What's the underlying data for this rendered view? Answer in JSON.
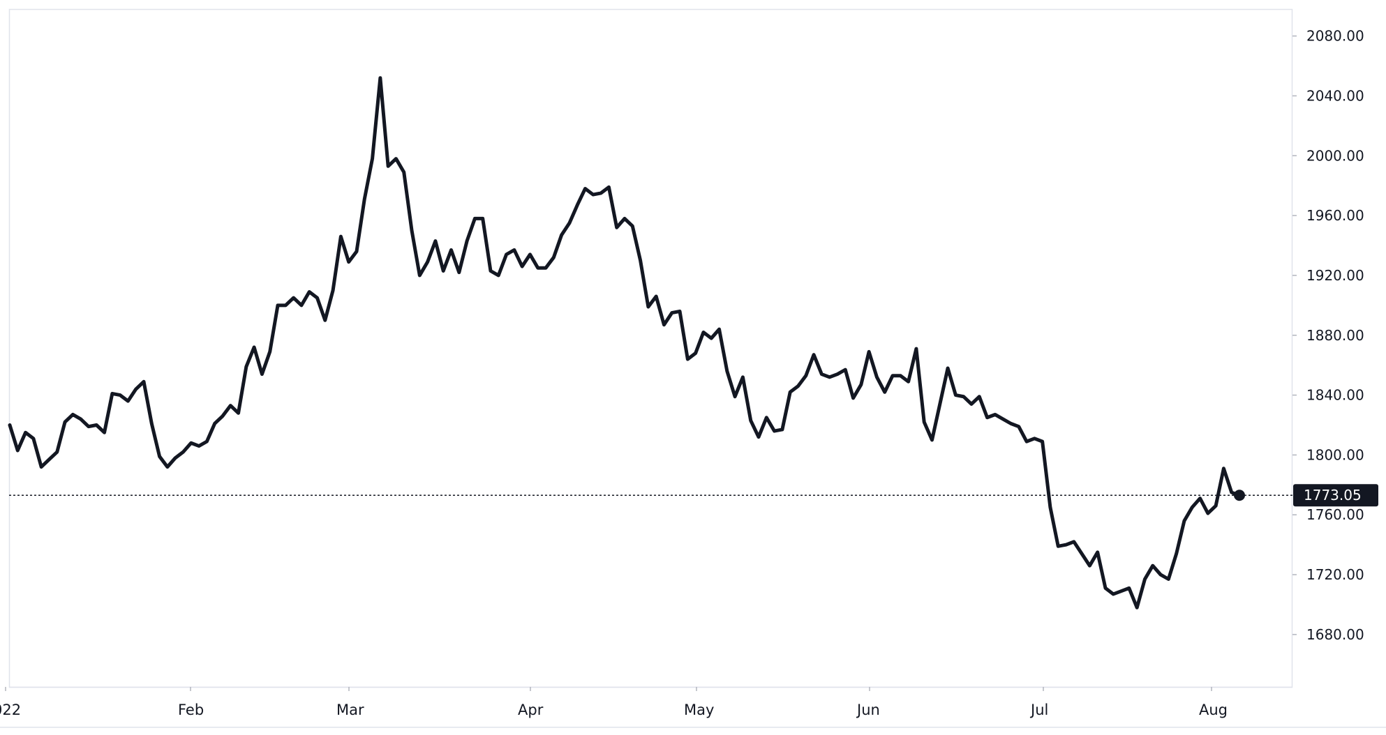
{
  "chart_data": {
    "type": "line",
    "title": "",
    "xlabel": "",
    "ylabel": "",
    "ylim": [
      1645,
      2098
    ],
    "grid": false,
    "legend": "none",
    "x_tick_labels": [
      "022",
      "Feb",
      "Mar",
      "Apr",
      "May",
      "Jun",
      "Jul",
      "Aug"
    ],
    "y_tick_labels": [
      "2080.00",
      "2040.00",
      "2000.00",
      "1960.00",
      "1920.00",
      "1880.00",
      "1840.00",
      "1800.00",
      "1760.00",
      "1720.00",
      "1680.00"
    ],
    "y_ticks": [
      2080,
      2040,
      2000,
      1960,
      1920,
      1880,
      1840,
      1800,
      1760,
      1720,
      1680
    ],
    "last_value": 1773.05,
    "last_value_label": "1773.05",
    "colors": {
      "line": "#131722",
      "label_bg": "#131722",
      "label_text": "#ffffff",
      "axis_text": "#131722",
      "border": "#e0e3eb"
    },
    "series": [
      {
        "values": [
          1820,
          1803,
          1815,
          1811,
          1792,
          1797,
          1802,
          1822,
          1827,
          1824,
          1819,
          1820,
          1815,
          1841,
          1840,
          1836,
          1844,
          1849,
          1821,
          1799,
          1792,
          1798,
          1802,
          1808,
          1806,
          1809,
          1821,
          1826,
          1833,
          1828,
          1859,
          1872,
          1854,
          1869,
          1900,
          1900,
          1905,
          1900,
          1909,
          1905,
          1890,
          1910,
          1946,
          1929,
          1936,
          1971,
          1998,
          2052,
          1993,
          1998,
          1989,
          1950,
          1920,
          1929,
          1943,
          1923,
          1937,
          1922,
          1943,
          1958,
          1958,
          1923,
          1920,
          1934,
          1937,
          1926,
          1934,
          1925,
          1925,
          1932,
          1947,
          1955,
          1967,
          1978,
          1974,
          1975,
          1979,
          1952,
          1958,
          1953,
          1930,
          1899,
          1906,
          1887,
          1895,
          1896,
          1864,
          1868,
          1882,
          1878,
          1884,
          1856,
          1839,
          1852,
          1823,
          1812,
          1825,
          1816,
          1817,
          1842,
          1846,
          1853,
          1867,
          1854,
          1852,
          1854,
          1857,
          1838,
          1847,
          1869,
          1852,
          1842,
          1853,
          1853,
          1849,
          1871,
          1822,
          1810,
          1834,
          1858,
          1840,
          1839,
          1834,
          1839,
          1825,
          1827,
          1824,
          1821,
          1819,
          1809,
          1811,
          1809,
          1765,
          1739,
          1740,
          1742,
          1734,
          1726,
          1735,
          1711,
          1707,
          1709,
          1711,
          1698,
          1717,
          1726,
          1720,
          1717,
          1734,
          1756,
          1765,
          1771,
          1761,
          1766,
          1791,
          1775,
          1773.05
        ]
      }
    ]
  }
}
